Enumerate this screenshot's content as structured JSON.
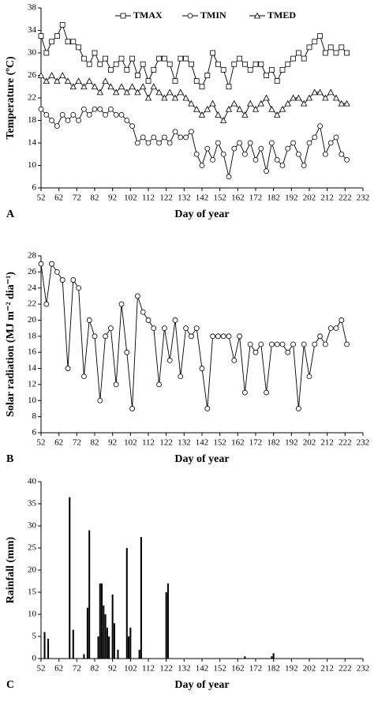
{
  "chart_data": [
    {
      "type": "line",
      "y_label": "Temperature (ºC)",
      "x_label": "Day of year",
      "panel_label": "A",
      "x": [
        52,
        55,
        58,
        61,
        64,
        67,
        70,
        73,
        76,
        79,
        82,
        85,
        88,
        91,
        94,
        97,
        100,
        103,
        106,
        109,
        112,
        115,
        118,
        121,
        124,
        127,
        130,
        133,
        136,
        139,
        142,
        145,
        148,
        151,
        154,
        157,
        160,
        163,
        166,
        169,
        172,
        175,
        178,
        181,
        184,
        187,
        190,
        193,
        196,
        199,
        202,
        205,
        208,
        211,
        214,
        217,
        220,
        223
      ],
      "series": [
        {
          "name": "TMAX",
          "color": "#000000",
          "marker": "square",
          "values": [
            33,
            30,
            32,
            33,
            35,
            32,
            32,
            31,
            29,
            28,
            30,
            28,
            29,
            27,
            28,
            29,
            27,
            29,
            26,
            28,
            25,
            27,
            29,
            29,
            28,
            25,
            29,
            29,
            28,
            25,
            24,
            26,
            30,
            28,
            27,
            24,
            28,
            29,
            28,
            27,
            28,
            28,
            26,
            27,
            25,
            27,
            28,
            29,
            30,
            29,
            31,
            32,
            33,
            30,
            31,
            30,
            31,
            30
          ]
        },
        {
          "name": "TMIN",
          "color": "#000000",
          "marker": "circle",
          "values": [
            20,
            19,
            18,
            17,
            19,
            18,
            19,
            18,
            20,
            19,
            20,
            20,
            19,
            20,
            19,
            19,
            18,
            17,
            14,
            15,
            14,
            15,
            14,
            15,
            14,
            16,
            15,
            15,
            16,
            12,
            10,
            13,
            11,
            14,
            12,
            8,
            13,
            14,
            12,
            14,
            11,
            13,
            9,
            14,
            11,
            10,
            13,
            14,
            12,
            10,
            14,
            15,
            17,
            12,
            14,
            15,
            12,
            11
          ]
        },
        {
          "name": "TMED",
          "color": "#000000",
          "marker": "triangle",
          "values": [
            26,
            25,
            26,
            25,
            26,
            25,
            24,
            25,
            24,
            25,
            24,
            23,
            25,
            24,
            23,
            24,
            23,
            24,
            23,
            24,
            22,
            24,
            23,
            22,
            23,
            22,
            23,
            22,
            21,
            20,
            19,
            20,
            21,
            19,
            18,
            20,
            21,
            20,
            19,
            21,
            20,
            21,
            22,
            20,
            19,
            20,
            21,
            22,
            22,
            21,
            22,
            23,
            23,
            22,
            23,
            22,
            21,
            21
          ]
        }
      ],
      "xlim": [
        52,
        232
      ],
      "xticks": [
        52,
        62,
        72,
        82,
        92,
        102,
        112,
        122,
        132,
        142,
        152,
        162,
        172,
        182,
        192,
        202,
        212,
        222,
        232
      ],
      "ylim": [
        6,
        38
      ],
      "yticks": [
        6,
        10,
        14,
        18,
        22,
        26,
        30,
        34,
        38
      ],
      "legend": "top"
    },
    {
      "type": "line",
      "y_label": "Solar radiation (MJ m⁻² dia⁻¹)",
      "x_label": "Day of year",
      "panel_label": "B",
      "x": [
        52,
        55,
        58,
        61,
        64,
        67,
        70,
        73,
        76,
        79,
        82,
        85,
        88,
        91,
        94,
        97,
        100,
        103,
        106,
        109,
        112,
        115,
        118,
        121,
        124,
        127,
        130,
        133,
        136,
        139,
        142,
        145,
        148,
        151,
        154,
        157,
        160,
        163,
        166,
        169,
        172,
        175,
        178,
        181,
        184,
        187,
        190,
        193,
        196,
        199,
        202,
        205,
        208,
        211,
        214,
        217,
        220,
        223
      ],
      "series": [
        {
          "color": "#000000",
          "marker": "circle",
          "values": [
            27,
            22,
            27,
            26,
            25,
            14,
            25,
            24,
            13,
            20,
            18,
            10,
            18,
            19,
            12,
            22,
            16,
            9,
            23,
            21,
            20,
            19,
            12,
            19,
            15,
            20,
            13,
            19,
            18,
            19,
            14,
            9,
            18,
            18,
            18,
            18,
            15,
            18,
            11,
            17,
            16,
            17,
            11,
            17,
            17,
            17,
            16,
            17,
            9,
            17,
            13,
            17,
            18,
            17,
            19,
            19,
            20,
            17
          ]
        }
      ],
      "xlim": [
        52,
        232
      ],
      "xticks": [
        52,
        62,
        72,
        82,
        92,
        102,
        112,
        122,
        132,
        142,
        152,
        162,
        172,
        182,
        192,
        202,
        212,
        222,
        232
      ],
      "ylim": [
        6,
        28
      ],
      "yticks": [
        6,
        8,
        10,
        12,
        14,
        16,
        18,
        20,
        22,
        24,
        26,
        28
      ]
    },
    {
      "type": "bar",
      "y_label": "Rainfall (mm)",
      "x_label": "Day of year",
      "panel_label": "C",
      "color": "#000000",
      "x": [
        54,
        56,
        68,
        70,
        76,
        78,
        79,
        84,
        85,
        86,
        87,
        88,
        89,
        90,
        92,
        93,
        95,
        100,
        101,
        102,
        107,
        108,
        122,
        123,
        166,
        181,
        182
      ],
      "values": [
        6,
        4.5,
        36.5,
        6.5,
        1,
        11.5,
        29,
        5,
        17,
        17,
        12,
        10,
        7,
        5,
        14.5,
        8,
        2,
        25,
        5,
        7,
        2,
        27.5,
        15,
        17,
        0.5,
        0.5,
        1.2
      ],
      "xlim": [
        52,
        232
      ],
      "xticks": [
        52,
        62,
        72,
        82,
        92,
        102,
        112,
        122,
        132,
        142,
        152,
        162,
        172,
        182,
        192,
        202,
        212,
        222,
        232
      ],
      "ylim": [
        0,
        40
      ],
      "yticks": [
        0,
        5,
        10,
        15,
        20,
        25,
        30,
        35,
        40
      ]
    }
  ]
}
